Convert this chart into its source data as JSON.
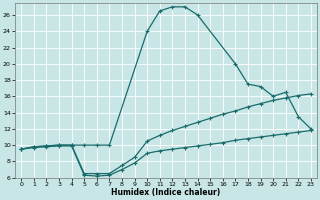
{
  "xlabel": "Humidex (Indice chaleur)",
  "xlim": [
    -0.5,
    23.5
  ],
  "ylim": [
    6,
    27.5
  ],
  "xticks": [
    0,
    1,
    2,
    3,
    4,
    5,
    6,
    7,
    8,
    9,
    10,
    11,
    12,
    13,
    14,
    15,
    16,
    17,
    18,
    19,
    20,
    21,
    22,
    23
  ],
  "yticks": [
    6,
    8,
    10,
    12,
    14,
    16,
    18,
    20,
    22,
    24,
    26
  ],
  "bg_color": "#c8e6e6",
  "line_color": "#1a6b6b",
  "grid_color": "#ffffff",
  "curve1_x": [
    0,
    1,
    2,
    3,
    4,
    5,
    6,
    7,
    10,
    11,
    12,
    13,
    14,
    17,
    18,
    19,
    20,
    21,
    22,
    23
  ],
  "curve1_y": [
    9.5,
    9.8,
    9.9,
    10.0,
    10.0,
    10.0,
    10.0,
    10.0,
    24.0,
    26.5,
    27.0,
    27.0,
    26.0,
    20.0,
    17.5,
    17.2,
    16.0,
    16.5,
    13.5,
    12.0
  ],
  "curve2_x": [
    0,
    1,
    2,
    3,
    4,
    5,
    6,
    7,
    8,
    9,
    10,
    11,
    12,
    13,
    14,
    15,
    16,
    17,
    18,
    19,
    20,
    21,
    22,
    23
  ],
  "curve2_y": [
    9.5,
    9.8,
    9.9,
    10.0,
    10.0,
    6.5,
    6.5,
    6.5,
    7.5,
    8.5,
    10.5,
    11.2,
    11.8,
    12.3,
    12.8,
    13.3,
    13.8,
    14.2,
    14.7,
    15.1,
    15.5,
    15.8,
    16.1,
    16.3
  ],
  "curve3_x": [
    0,
    1,
    2,
    3,
    4,
    5,
    6,
    7,
    8,
    9,
    10,
    11,
    12,
    13,
    14,
    15,
    16,
    17,
    18,
    19,
    20,
    21,
    22,
    23
  ],
  "curve3_y": [
    9.5,
    9.7,
    9.8,
    9.9,
    9.9,
    6.3,
    6.2,
    6.3,
    7.0,
    7.8,
    9.0,
    9.3,
    9.5,
    9.7,
    9.9,
    10.1,
    10.3,
    10.6,
    10.8,
    11.0,
    11.2,
    11.4,
    11.6,
    11.8
  ]
}
